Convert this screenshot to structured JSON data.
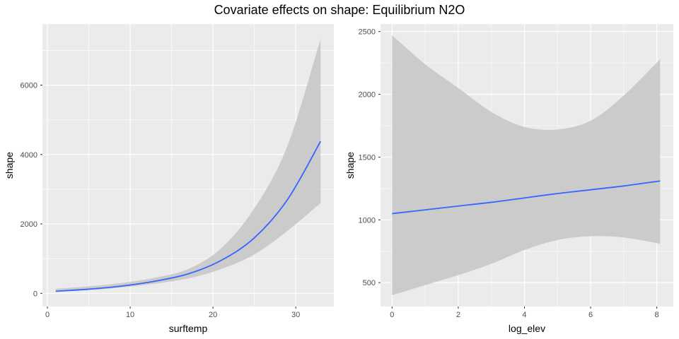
{
  "figure": {
    "title": "Covariate effects on shape: Equilibrium N2O"
  },
  "colors": {
    "panel_bg": "#EBEBEB",
    "grid": "#FFFFFF",
    "ribbon": "#C9C9C9",
    "line": "#3366FF",
    "tick_text": "#4D4D4D",
    "axis_title": "#000000"
  },
  "chart_data": [
    {
      "type": "line",
      "xlabel": "surftemp",
      "ylabel": "shape",
      "xlim": [
        -0.6,
        34.6
      ],
      "ylim": [
        -380,
        7760
      ],
      "x_ticks": [
        0,
        10,
        20,
        30
      ],
      "y_ticks": [
        0,
        2000,
        4000,
        6000
      ],
      "grid": true,
      "series": [
        {
          "x": [
            1,
            5,
            9,
            13,
            17,
            21,
            25,
            29,
            33
          ],
          "y": [
            60,
            120,
            210,
            350,
            560,
            950,
            1600,
            2700,
            4380
          ],
          "lower": [
            45,
            95,
            170,
            280,
            430,
            700,
            1120,
            1800,
            2600
          ],
          "upper": [
            130,
            200,
            300,
            450,
            700,
            1300,
            2450,
            4250,
            7330
          ]
        }
      ]
    },
    {
      "type": "line",
      "xlabel": "log_elev",
      "ylabel": "shape",
      "xlim": [
        -0.35,
        8.5
      ],
      "ylim": [
        310,
        2560
      ],
      "x_ticks": [
        0,
        2,
        4,
        6,
        8
      ],
      "y_ticks": [
        500,
        1000,
        1500,
        2000,
        2500
      ],
      "grid": true,
      "series": [
        {
          "x": [
            0,
            1,
            2,
            3,
            4,
            5,
            6,
            7,
            8.1
          ],
          "y": [
            1050,
            1080,
            1110,
            1140,
            1175,
            1210,
            1240,
            1270,
            1310
          ],
          "lower": [
            400,
            480,
            560,
            650,
            760,
            840,
            870,
            860,
            810
          ],
          "upper": [
            2470,
            2240,
            2050,
            1860,
            1740,
            1720,
            1790,
            1990,
            2280
          ]
        }
      ]
    }
  ]
}
